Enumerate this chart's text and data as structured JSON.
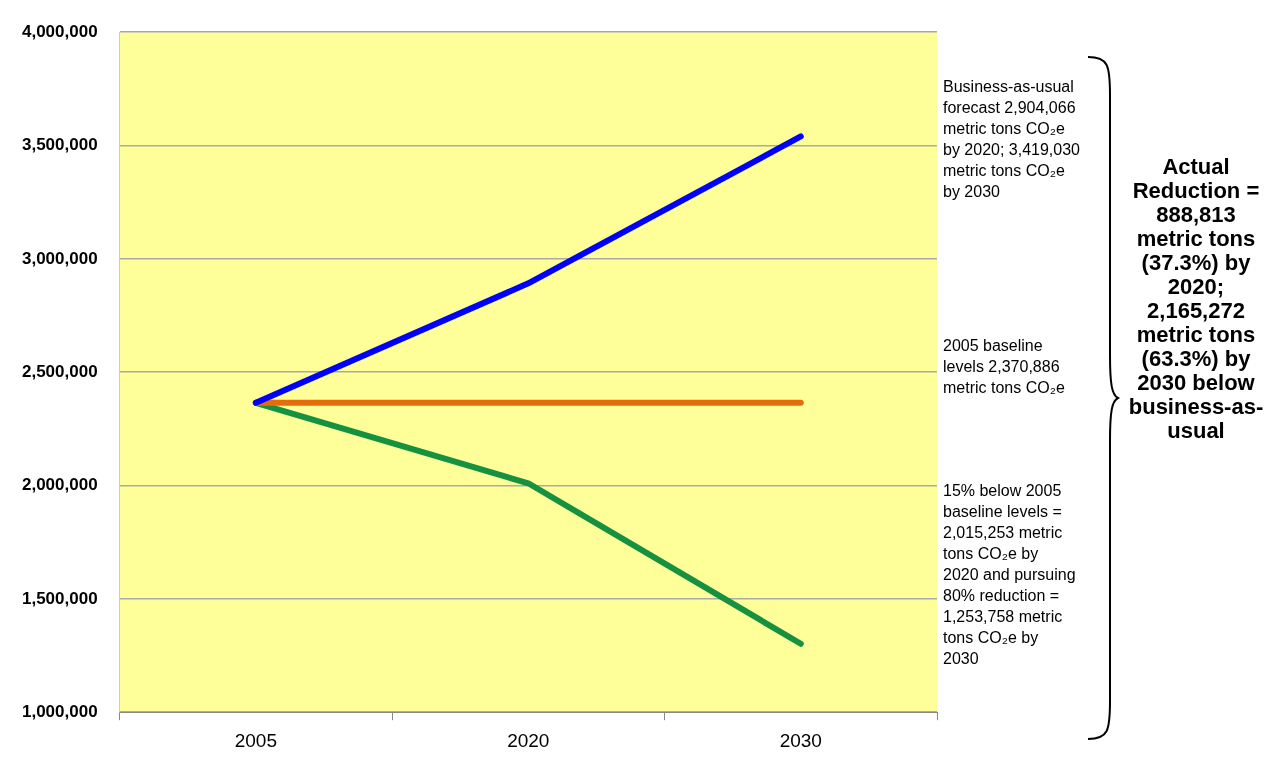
{
  "chart_data": {
    "type": "line",
    "categories": [
      "2005",
      "2020",
      "2030"
    ],
    "series": [
      {
        "color": "#0000ff",
        "values": [
          2365000,
          2892000,
          3540000
        ]
      },
      {
        "color": "#e46c0a",
        "values": [
          2365000,
          2365000,
          2365000
        ]
      },
      {
        "color": "#16913f",
        "values": [
          2365000,
          2010000,
          1302000
        ]
      }
    ],
    "ylim": [
      1000000,
      4000000
    ],
    "yticks": [
      {
        "value": 1000000,
        "label": "1,000,000"
      },
      {
        "value": 1500000,
        "label": "1,500,000"
      },
      {
        "value": 2000000,
        "label": "2,000,000"
      },
      {
        "value": 2500000,
        "label": "2,500,000"
      },
      {
        "value": 3000000,
        "label": "3,000,000"
      },
      {
        "value": 3500000,
        "label": "3,500,000"
      },
      {
        "value": 4000000,
        "label": "4,000,000"
      }
    ],
    "grid": "y",
    "legend": false,
    "marker": "none",
    "line_style": "solid",
    "annotations": [
      "Business-as-usual forecast 2,904,066 metric tons CO₂e by 2020; 3,419,030 metric tons CO₂e by 2030",
      "2005 baseline levels 2,370,886 metric tons CO₂e",
      "15% below 2005 baseline levels = 2,015,253 metric tons CO₂e by 2020 and pursuing 80% reduction = 1,253,758 metric tons CO₂e by 2030",
      "Actual Reduction = 888,813 metric tons (37.3%) by 2020; 2,165,272 metric tons (63.3%) by 2030 below business-as-usual"
    ]
  }
}
